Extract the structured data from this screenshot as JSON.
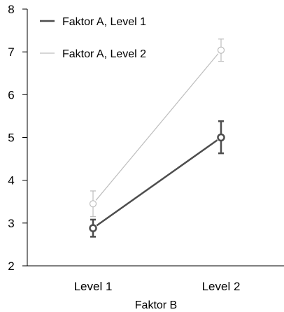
{
  "chart_data": {
    "type": "line",
    "title": "",
    "xlabel": "Faktor B",
    "ylabel": "",
    "categories": [
      "Level 1",
      "Level 2"
    ],
    "ylim": [
      2,
      8
    ],
    "yticks": [
      "2",
      "3",
      "4",
      "5",
      "6",
      "7",
      "8"
    ],
    "grid": false,
    "legend_position": "top-left",
    "error_bars": true,
    "series": [
      {
        "name": "Faktor A, Level 1",
        "color": "#4d4d4d",
        "values": [
          2.88,
          5.0
        ],
        "error_low": [
          2.68,
          4.63
        ],
        "error_high": [
          3.08,
          5.38
        ]
      },
      {
        "name": "Faktor A, Level 2",
        "color": "#bdbdbd",
        "values": [
          3.45,
          7.04
        ],
        "error_low": [
          3.15,
          6.78
        ],
        "error_high": [
          3.75,
          7.3
        ]
      }
    ]
  }
}
